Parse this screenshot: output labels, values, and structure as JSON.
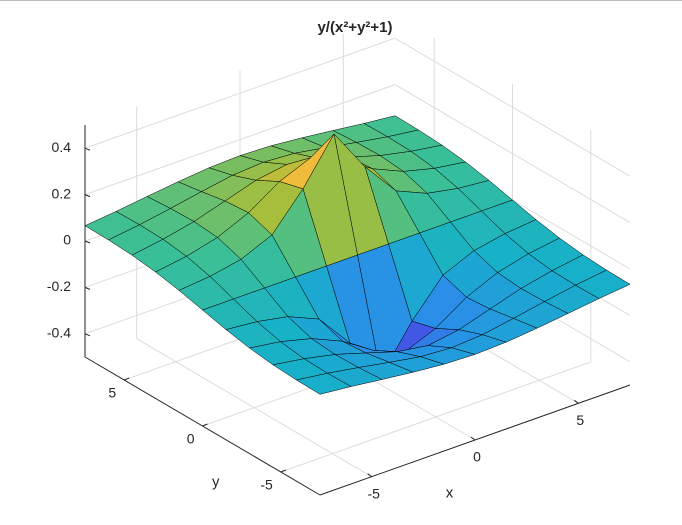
{
  "chart_data": {
    "type": "surface",
    "title": "y/(x²+y²+1)",
    "xlabel": "x",
    "ylabel": "y",
    "x": [
      -7.5,
      -6,
      -4.5,
      -3,
      -1.5,
      0,
      1.5,
      3,
      4.5,
      6,
      7.5
    ],
    "y": [
      -7.5,
      -6,
      -4.5,
      -3,
      -1.5,
      0,
      1.5,
      3,
      4.5,
      6,
      7.5
    ],
    "z": [
      [
        -0.066,
        -0.08,
        -0.097,
        -0.113,
        -0.126,
        -0.131,
        -0.126,
        -0.113,
        -0.097,
        -0.08,
        -0.066
      ],
      [
        -0.064,
        -0.082,
        -0.105,
        -0.13,
        -0.153,
        -0.162,
        -0.153,
        -0.13,
        -0.105,
        -0.082,
        -0.064
      ],
      [
        -0.058,
        -0.079,
        -0.108,
        -0.149,
        -0.191,
        -0.212,
        -0.191,
        -0.149,
        -0.108,
        -0.079,
        -0.058
      ],
      [
        -0.045,
        -0.065,
        -0.099,
        -0.158,
        -0.245,
        -0.3,
        -0.245,
        -0.158,
        -0.099,
        -0.065,
        -0.045
      ],
      [
        -0.025,
        -0.038,
        -0.064,
        -0.122,
        -0.273,
        -0.462,
        -0.273,
        -0.122,
        -0.064,
        -0.038,
        -0.025
      ],
      [
        0,
        0,
        0,
        0,
        0,
        0,
        0,
        0,
        0,
        0,
        0
      ],
      [
        0.025,
        0.038,
        0.064,
        0.122,
        0.273,
        0.462,
        0.273,
        0.122,
        0.064,
        0.038,
        0.025
      ],
      [
        0.045,
        0.065,
        0.099,
        0.158,
        0.245,
        0.3,
        0.245,
        0.158,
        0.099,
        0.065,
        0.045
      ],
      [
        0.058,
        0.079,
        0.108,
        0.149,
        0.191,
        0.212,
        0.191,
        0.149,
        0.108,
        0.079,
        0.058
      ],
      [
        0.064,
        0.082,
        0.105,
        0.13,
        0.153,
        0.162,
        0.153,
        0.13,
        0.105,
        0.082,
        0.064
      ],
      [
        0.066,
        0.08,
        0.097,
        0.113,
        0.126,
        0.131,
        0.126,
        0.113,
        0.097,
        0.08,
        0.066
      ]
    ],
    "xlim": [
      -7.5,
      7.5
    ],
    "ylim": [
      -7.5,
      7.5
    ],
    "zlim": [
      -0.5,
      0.5
    ],
    "xticks": [
      -5,
      0,
      5
    ],
    "yticks": [
      -5,
      0,
      5
    ],
    "zticks": [
      -0.4,
      -0.2,
      0,
      0.2,
      0.4
    ],
    "grid": true,
    "colormap": [
      "#3e26a8",
      "#4354e6",
      "#2a8ee8",
      "#17b1c8",
      "#3abf96",
      "#a5be3b",
      "#f5bb3a",
      "#f9fb15"
    ]
  }
}
